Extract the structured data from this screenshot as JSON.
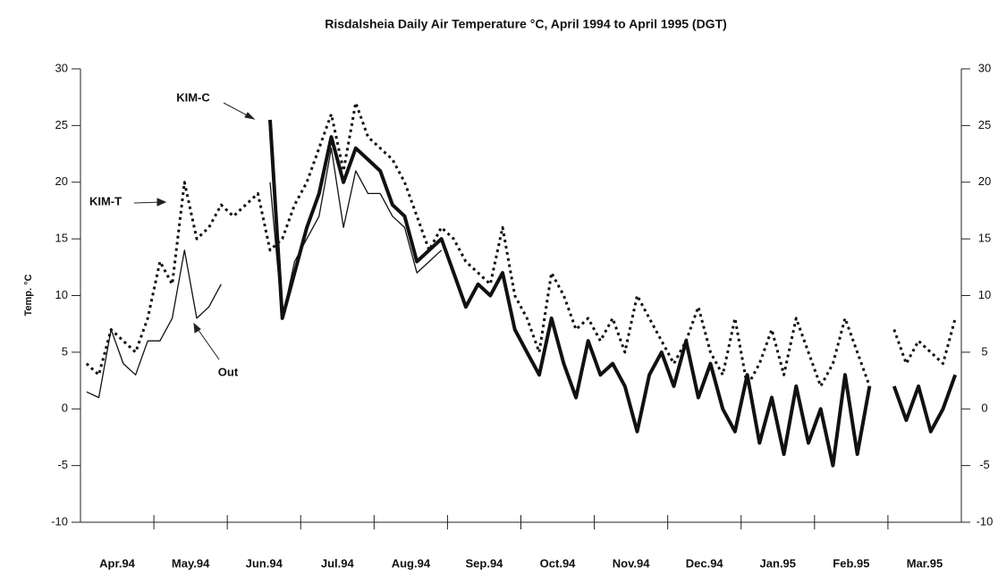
{
  "chart_data": {
    "type": "line",
    "title": "Risdalsheia Daily Air Temperature °C, April 1994 to April 1995 (DGT)",
    "y_label": "Temp. °C",
    "annotations": [
      "KIM-C",
      "KIM-T",
      "Out"
    ],
    "categories": [
      "Apr.94",
      null,
      null,
      null,
      null,
      null,
      "May.94",
      null,
      null,
      null,
      null,
      null,
      "Jun.94",
      null,
      null,
      null,
      null,
      null,
      "Jul.94",
      null,
      null,
      null,
      null,
      null,
      "Aug.94",
      null,
      null,
      null,
      null,
      null,
      "Sep.94",
      null,
      null,
      null,
      null,
      null,
      "Oct.94",
      null,
      null,
      null,
      null,
      null,
      "Nov.94",
      null,
      null,
      null,
      null,
      null,
      "Dec.94",
      null,
      null,
      null,
      null,
      null,
      "Jan.95",
      null,
      null,
      null,
      null,
      null,
      "Feb.95",
      null,
      null,
      null,
      null,
      null,
      "Mar.95",
      null,
      null,
      null,
      null,
      null
    ],
    "series": [
      {
        "name": "KIM-C",
        "color": "#111111",
        "line_style": "solid",
        "line_width": 4,
        "values": [
          null,
          null,
          null,
          null,
          null,
          null,
          null,
          null,
          null,
          null,
          null,
          null,
          null,
          null,
          null,
          25.5,
          8,
          12,
          16,
          19,
          24,
          20,
          23,
          22,
          21,
          18,
          17,
          13,
          14,
          15,
          12,
          9,
          11,
          10,
          12,
          7,
          5,
          3,
          8,
          4,
          1,
          6,
          3,
          4,
          2,
          -2,
          3,
          5,
          2,
          6,
          1,
          4,
          0,
          -2,
          3,
          -3,
          1,
          -4,
          2,
          -3,
          0,
          -5,
          3,
          -4,
          2,
          null,
          2,
          -1,
          2,
          -2,
          0,
          3
        ]
      },
      {
        "name": "KIM-T",
        "color": "#111111",
        "line_style": "dotted",
        "line_width": 3,
        "values": [
          4,
          3,
          7,
          6,
          5,
          8,
          13,
          11,
          20,
          15,
          16,
          18,
          17,
          18,
          19,
          14,
          15,
          18,
          20,
          23,
          26,
          21,
          27,
          24,
          23,
          22,
          20,
          17,
          14,
          16,
          15,
          13,
          12,
          11,
          16,
          10,
          8,
          5,
          12,
          10,
          7,
          8,
          6,
          8,
          5,
          10,
          8,
          6,
          4,
          6,
          9,
          5,
          3,
          8,
          2,
          4,
          7,
          3,
          8,
          5,
          2,
          4,
          8,
          5,
          2,
          null,
          7,
          4,
          6,
          5,
          4,
          8
        ]
      },
      {
        "name": "Out",
        "color": "#111111",
        "line_style": "solid",
        "line_width": 1.3,
        "values": [
          1.5,
          1,
          7,
          4,
          3,
          6,
          6,
          8,
          14,
          8,
          9,
          11,
          null,
          null,
          null,
          20,
          8,
          13,
          15,
          17,
          23,
          16,
          21,
          19,
          19,
          17,
          16,
          12,
          13,
          14,
          null,
          null,
          null,
          null,
          null,
          null,
          null,
          null,
          null,
          null,
          null,
          null,
          null,
          null,
          null,
          null,
          null,
          null,
          null,
          null,
          null,
          null,
          null,
          null,
          null,
          null,
          null,
          null,
          null,
          null,
          null,
          null,
          null,
          null,
          null,
          null,
          null,
          null,
          null,
          null,
          null,
          null
        ]
      }
    ],
    "ylim": [
      -10,
      30
    ],
    "yticks": [
      -10,
      -5,
      0,
      5,
      10,
      15,
      20,
      25,
      30
    ],
    "y2lim": [
      -10,
      30
    ],
    "y2ticks": [
      -10,
      -5,
      0,
      5,
      10,
      15,
      20,
      25,
      30
    ],
    "grid": false
  }
}
